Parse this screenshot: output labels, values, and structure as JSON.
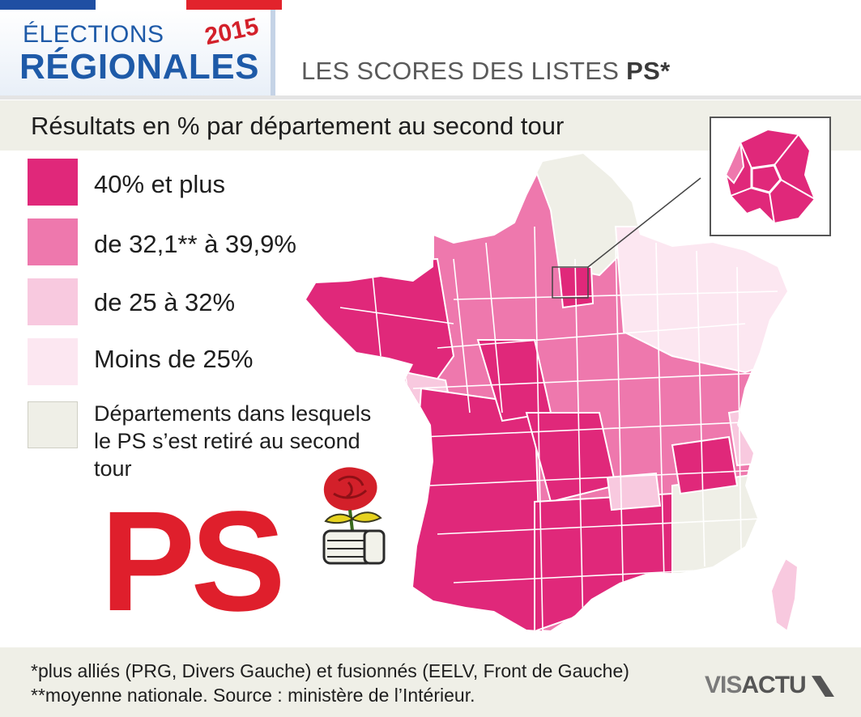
{
  "header": {
    "title_line1": "ÉLECTIONS",
    "title_line2": "RÉGIONALES",
    "year": "2015",
    "subtitle_main": "LES SCORES DES LISTES ",
    "subtitle_bold": "PS*"
  },
  "section_title": "Résultats en % par département au second tour",
  "legend": [
    {
      "label": "40% et plus",
      "color": "#e0287a"
    },
    {
      "label": "de 32,1** à 39,9%",
      "color": "#ee78ad"
    },
    {
      "label": "de 25 à 32%",
      "color": "#f8c9df"
    },
    {
      "label": "Moins de 25%",
      "color": "#fce7f1"
    },
    {
      "label": "Départements dans lesquels le PS s’est retiré au second tour",
      "color": "#efefe7"
    }
  ],
  "party_logo_text": "PS",
  "footnote": "*plus alliés (PRG, Divers Gauche) et fusionnés (EELV, Front de Gauche) **moyenne nationale. Source : ministère de l’Intérieur.",
  "brand": {
    "part1": "VIS",
    "part2": "ACTU"
  },
  "colors": {
    "accent_blue": "#1e5aa8",
    "ps_red": "#df1f2c",
    "band": "#efefe7"
  }
}
